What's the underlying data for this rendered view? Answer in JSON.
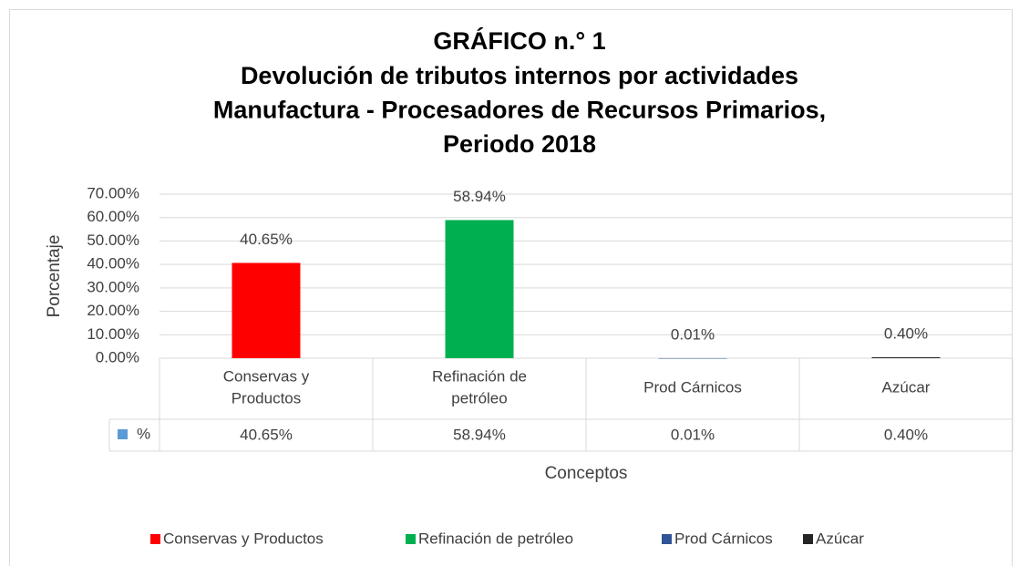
{
  "chart_data": {
    "type": "bar",
    "title": [
      "GRÁFICO n.° 1",
      "Devolución de tributos internos por actividades",
      "Manufactura - Procesadores de Recursos Primarios,",
      "Periodo 2018"
    ],
    "y_label": "Porcentaje",
    "x_label": "Conceptos",
    "categories": [
      "Conservas y Productos",
      "Refinación de petróleo",
      "Prod Cárnicos",
      "Azúcar"
    ],
    "series": [
      {
        "name": "%",
        "color": "#5b9bd5",
        "values": [
          40.65,
          58.94,
          0.01,
          0.4
        ],
        "value_labels": [
          "40.65%",
          "58.94%",
          "0.01%",
          "0.40%"
        ]
      }
    ],
    "colors": [
      "#ff0000",
      "#00b050",
      "#2f5597",
      "#262626"
    ],
    "ylim": [
      0,
      70
    ],
    "yticks": [
      {
        "value": 0,
        "label": "0.00%"
      },
      {
        "value": 10,
        "label": "10.00%"
      },
      {
        "value": 20,
        "label": "20.00%"
      },
      {
        "value": 30,
        "label": "30.00%"
      },
      {
        "value": 40,
        "label": "40.00%"
      },
      {
        "value": 50,
        "label": "50.00%"
      },
      {
        "value": 60,
        "label": "60.00%"
      },
      {
        "value": 70,
        "label": "70.00%"
      }
    ],
    "grid": true,
    "legend": "bottom",
    "data_table": true
  }
}
